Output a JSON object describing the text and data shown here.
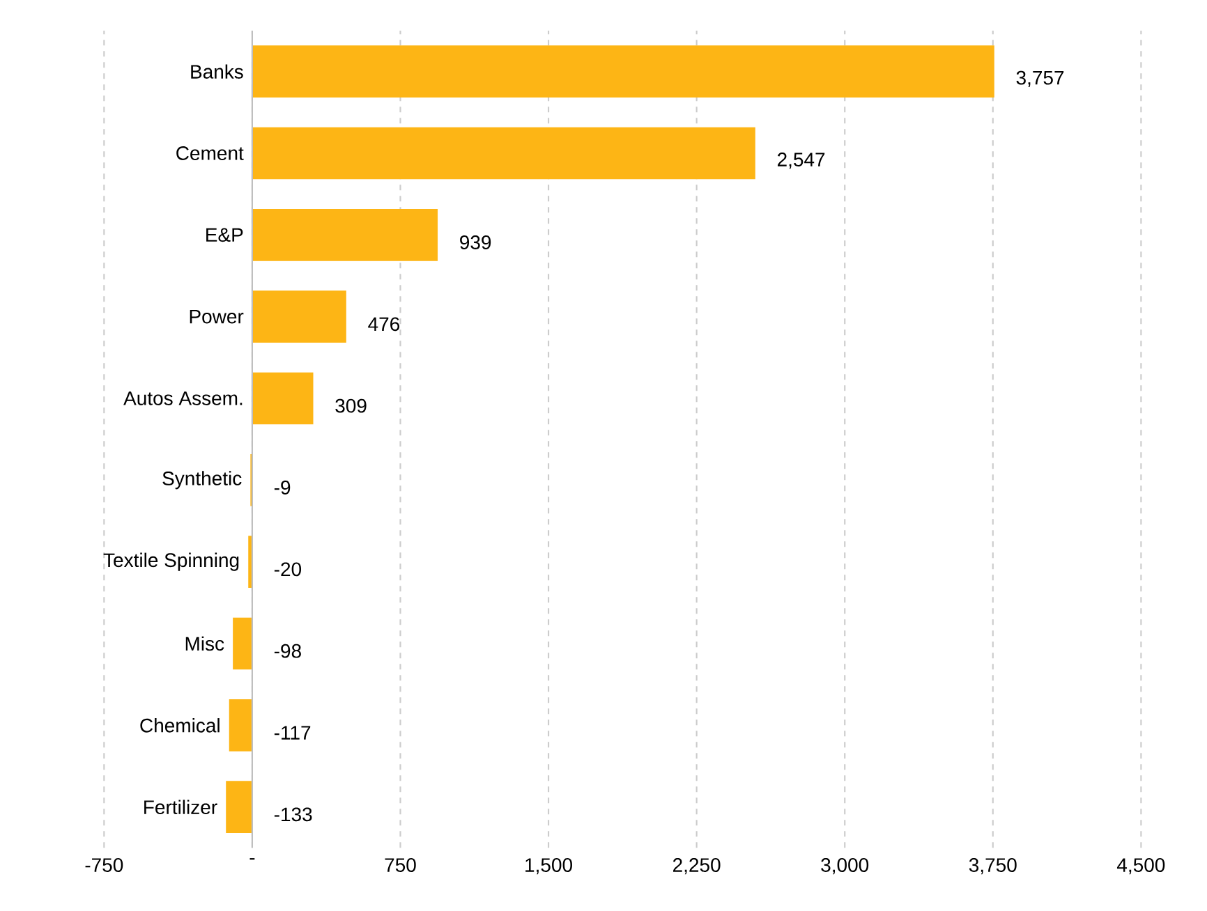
{
  "chart_data": {
    "type": "bar",
    "orientation": "horizontal",
    "categories": [
      "Banks",
      "Cement",
      "E&P",
      "Power",
      "Autos Assem.",
      "Synthetic",
      "Textile Spinning",
      "Misc",
      "Chemical",
      "Fertilizer"
    ],
    "values": [
      3757,
      2547,
      939,
      476,
      309,
      -9,
      -20,
      -98,
      -117,
      -133
    ],
    "value_labels": [
      "3,757",
      "2,547",
      "939",
      "476",
      "309",
      "-9",
      "-20",
      "-98",
      "-117",
      "-133"
    ],
    "color": "#fdb515",
    "xlim": [
      -750,
      4500
    ],
    "xticks": [
      -750,
      {
        "value": 0,
        "label": "-"
      },
      750,
      {
        "value": 1500,
        "label": "1,500"
      },
      {
        "value": 2250,
        "label": "2,250"
      },
      {
        "value": 3000,
        "label": "3,000"
      },
      {
        "value": 3750,
        "label": "3,750"
      },
      {
        "value": 4500,
        "label": "4,500"
      }
    ],
    "grid": "x"
  }
}
